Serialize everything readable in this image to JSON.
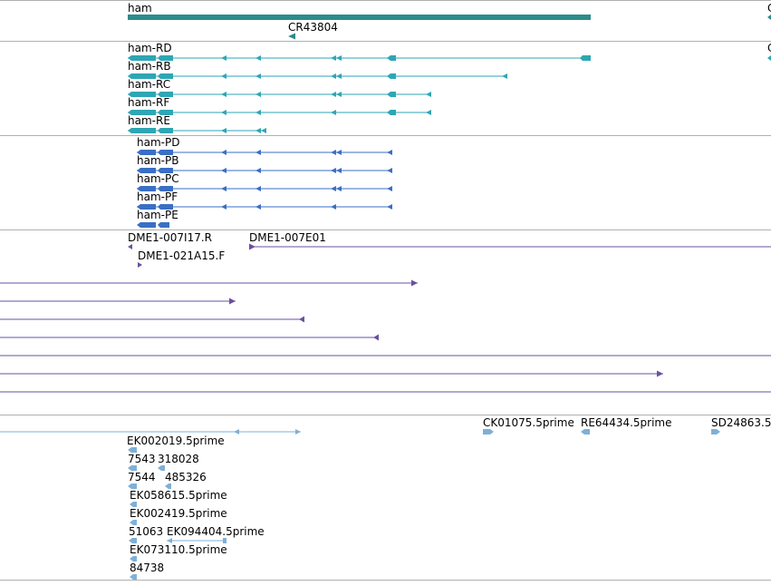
{
  "colors": {
    "gene": "#2e8b8b",
    "cdna": "#2ea6b4",
    "transcript_cds": "#3a6fc4",
    "est_match": "#6a50a0",
    "est": "#7eb0d8",
    "divider": "#b0b0b0"
  },
  "tracks": {
    "gene": {
      "features": [
        {
          "label": "ham",
          "strand": "minus"
        },
        {
          "label": "CR43804",
          "strand": "minus"
        },
        {
          "label": "C",
          "strand": "minus"
        }
      ]
    },
    "mrna": {
      "features": [
        {
          "label": "ham-RD",
          "strand": "minus"
        },
        {
          "label": "ham-RB",
          "strand": "minus"
        },
        {
          "label": "ham-RC",
          "strand": "minus"
        },
        {
          "label": "ham-RF",
          "strand": "minus"
        },
        {
          "label": "ham-RE",
          "strand": "minus"
        },
        {
          "label": "C",
          "strand": "minus"
        }
      ]
    },
    "protein": {
      "features": [
        {
          "label": "ham-PD",
          "strand": "minus"
        },
        {
          "label": "ham-PB",
          "strand": "minus"
        },
        {
          "label": "ham-PC",
          "strand": "minus"
        },
        {
          "label": "ham-PF",
          "strand": "minus"
        },
        {
          "label": "ham-PE",
          "strand": "minus"
        }
      ]
    },
    "cdna_clones": {
      "features": [
        {
          "label": "DME1-007I17.R",
          "strand": "minus"
        },
        {
          "label": "DME1-007E01",
          "strand": "plus"
        },
        {
          "label": "DME1-021A15.F",
          "strand": "plus"
        }
      ],
      "unlabeled_rows": 7
    },
    "ests": {
      "features": [
        {
          "label": "CK01075.5prime",
          "strand": "plus"
        },
        {
          "label": "RE64434.5prime",
          "strand": "minus"
        },
        {
          "label": "SD24863.5",
          "strand": "plus"
        },
        {
          "label": "EK002019.5prime",
          "strand": "minus"
        },
        {
          "label": "7543",
          "strand": "minus"
        },
        {
          "label": "318028",
          "strand": "minus"
        },
        {
          "label": "7544",
          "strand": "minus"
        },
        {
          "label": "485326",
          "strand": "minus"
        },
        {
          "label": "EK058615.5prime",
          "strand": "minus"
        },
        {
          "label": "EK002419.5prime",
          "strand": "minus"
        },
        {
          "label": "51063",
          "strand": "minus"
        },
        {
          "label": "EK094404.5prime",
          "strand": "minus"
        },
        {
          "label": "EK073110.5prime",
          "strand": "minus"
        },
        {
          "label": "84738",
          "strand": "minus"
        }
      ]
    }
  }
}
